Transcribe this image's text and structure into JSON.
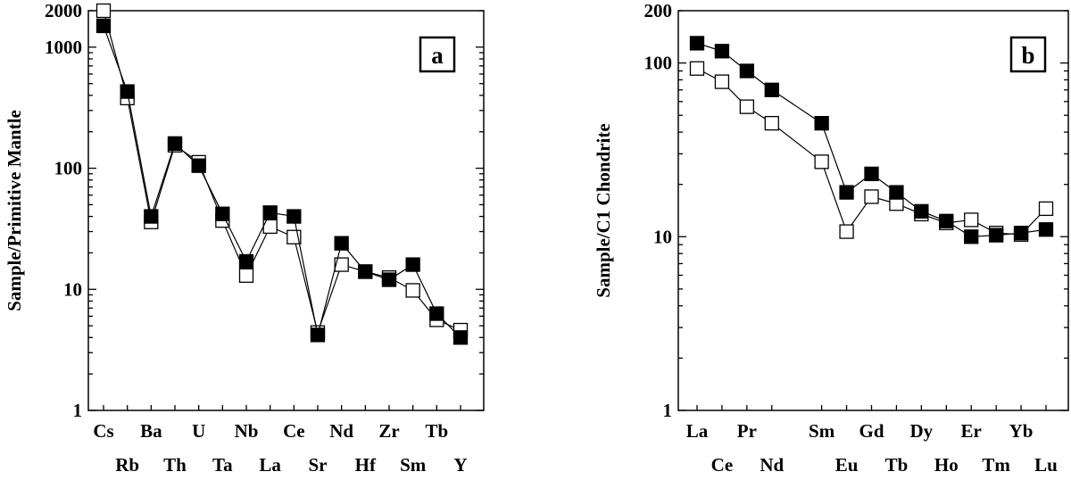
{
  "chart_data": [
    {
      "type": "line",
      "panel_label": "a",
      "ylabel": "Sample/Primitive Mantle",
      "yscale": "log",
      "ylim": [
        1,
        2000
      ],
      "yticks": [
        "1",
        "10",
        "100",
        "1000",
        "2000"
      ],
      "categories": [
        "Cs",
        "Rb",
        "Ba",
        "Th",
        "U",
        "Ta",
        "Nb",
        "La",
        "Ce",
        "Sr",
        "Nd",
        "Hf",
        "Zr",
        "Sm",
        "Tb",
        "Y"
      ],
      "series": [
        {
          "marker": "filled-square",
          "values": [
            1500,
            430,
            40,
            160,
            105,
            42,
            17,
            43,
            40,
            4.2,
            24,
            14,
            12,
            16,
            6.3,
            4.0
          ]
        },
        {
          "marker": "open-square",
          "values": [
            2000,
            380,
            36,
            155,
            112,
            37,
            13,
            33,
            27,
            4.4,
            16,
            14,
            12.5,
            9.8,
            5.6,
            4.6
          ]
        }
      ]
    },
    {
      "type": "line",
      "panel_label": "b",
      "ylabel": "Sample/C1 Chondrite",
      "yscale": "log",
      "ylim": [
        1,
        200
      ],
      "yticks": [
        "1",
        "10",
        "100",
        "200"
      ],
      "categories": [
        "La",
        "Ce",
        "Pr",
        "Nd",
        "Sm",
        "Eu",
        "Gd",
        "Tb",
        "Dy",
        "Ho",
        "Er",
        "Tm",
        "Yb",
        "Lu"
      ],
      "category_positions": [
        0,
        1,
        2,
        3,
        5,
        6,
        7,
        8,
        9,
        10,
        11,
        12,
        13,
        14
      ],
      "series": [
        {
          "marker": "filled-square",
          "values": [
            130,
            117,
            90,
            70,
            45,
            18,
            23,
            18,
            14,
            12.3,
            10,
            10.2,
            10.5,
            11
          ]
        },
        {
          "marker": "open-square",
          "values": [
            93,
            78,
            56,
            45,
            27,
            10.7,
            17,
            15.5,
            13.5,
            12,
            12.5,
            10.5,
            10.3,
            14.5
          ]
        }
      ]
    }
  ]
}
